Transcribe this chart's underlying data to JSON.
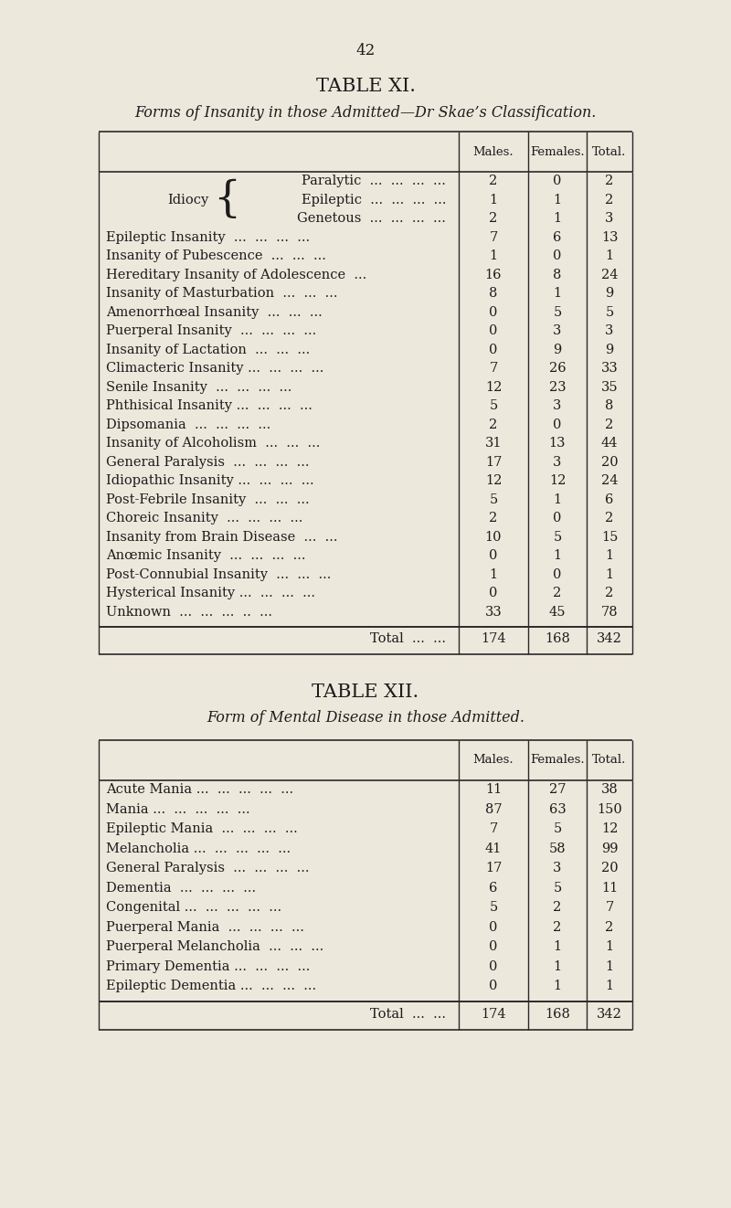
{
  "bg_color": "#ede8dc",
  "page_number": "42",
  "table1": {
    "title": "TABLE XI.",
    "subtitle": "Forms of Insanity in those Admitted—Dr Skae’s Classification.",
    "col_headers": [
      "Males.",
      "Females.",
      "Total."
    ],
    "idiocy_rows": [
      [
        "Paralytic",
        "2",
        "0",
        "2"
      ],
      [
        "Epileptic",
        "1",
        "1",
        "2"
      ],
      [
        "Genetous",
        "2",
        "1",
        "3"
      ]
    ],
    "rows": [
      [
        "Epileptic Insanity",
        "7",
        "6",
        "13"
      ],
      [
        "Insanity of Pubescence",
        "1",
        "0",
        "1"
      ],
      [
        "Hereditary Insanity of Adolescence",
        "16",
        "8",
        "24"
      ],
      [
        "Insanity of Masturbation",
        "8",
        "1",
        "9"
      ],
      [
        "Amenorrhœal Insanity",
        "0",
        "5",
        "5"
      ],
      [
        "Puerperal Insanity",
        "0",
        "3",
        "3"
      ],
      [
        "Insanity of Lactation",
        "0",
        "9",
        "9"
      ],
      [
        "Climacteric Insanity ...",
        "7",
        "26",
        "33"
      ],
      [
        "Senile Insanity",
        "12",
        "23",
        "35"
      ],
      [
        "Phthisical Insanity ...",
        "5",
        "3",
        "8"
      ],
      [
        "Dipsomania",
        "2",
        "0",
        "2"
      ],
      [
        "Insanity of Alcoholism",
        "31",
        "13",
        "44"
      ],
      [
        "General Paralysis",
        "17",
        "3",
        "20"
      ],
      [
        "Idiopathic Insanity ...",
        "12",
        "12",
        "24"
      ],
      [
        "Post-Febrile Insanity",
        "5",
        "1",
        "6"
      ],
      [
        "Choreic Insanity",
        "2",
        "0",
        "2"
      ],
      [
        "Insanity from Brain Disease",
        "10",
        "5",
        "15"
      ],
      [
        "Anœmic Insanity",
        "0",
        "1",
        "1"
      ],
      [
        "Post-Connubial Insanity",
        "1",
        "0",
        "1"
      ],
      [
        "Hysterical Insanity ...",
        "0",
        "2",
        "2"
      ],
      [
        "Unknown",
        "33",
        "45",
        "78"
      ]
    ],
    "total": [
      "174",
      "168",
      "342"
    ]
  },
  "table2": {
    "title": "TABLE XII.",
    "subtitle": "Form of Mental Disease in those Admitted.",
    "col_headers": [
      "Males.",
      "Females.",
      "Total."
    ],
    "rows": [
      [
        "Acute Mania ...",
        "11",
        "27",
        "38"
      ],
      [
        "Mania ...",
        "87",
        "63",
        "150"
      ],
      [
        "Epileptic Mania",
        "7",
        "5",
        "12"
      ],
      [
        "Melancholia ...",
        "41",
        "58",
        "99"
      ],
      [
        "General Paralysis",
        "17",
        "3",
        "20"
      ],
      [
        "Dementia",
        "6",
        "5",
        "11"
      ],
      [
        "Congenital ...",
        "5",
        "2",
        "7"
      ],
      [
        "Puerperal Mania",
        "0",
        "2",
        "2"
      ],
      [
        "Puerperal Melancholia",
        "0",
        "1",
        "1"
      ],
      [
        "Primary Dementia ...",
        "0",
        "1",
        "1"
      ],
      [
        "Epileptic Dementia ...",
        "0",
        "1",
        "1"
      ]
    ],
    "total": [
      "174",
      "168",
      "342"
    ]
  }
}
